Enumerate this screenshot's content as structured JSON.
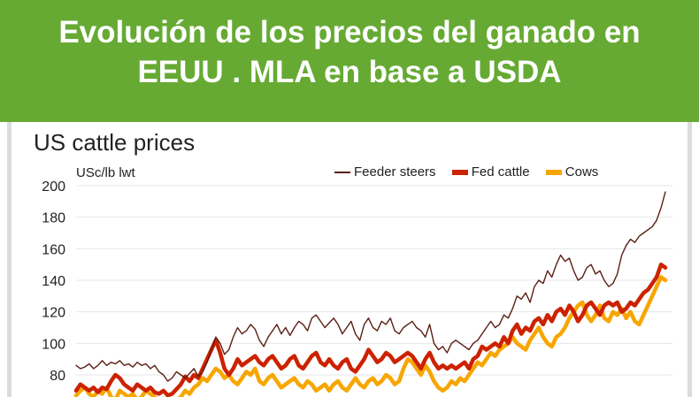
{
  "banner": {
    "title_line1": "Evolución de los precios del ganado en",
    "title_line2": "EEUU . MLA en base a USDA"
  },
  "colors": {
    "banner": "#66aa33",
    "feeder_steers": "#5a1e14",
    "fed_cattle": "#cc2200",
    "cows": "#f7a600"
  },
  "chart_data": {
    "type": "line",
    "title": "US cattle prices",
    "ylabel": "USc/lb lwt",
    "ylim": [
      70,
      205
    ],
    "yticks": [
      80,
      100,
      120,
      140,
      160,
      180,
      200
    ],
    "x": [
      0,
      1,
      2,
      3,
      4,
      5,
      6,
      7,
      8,
      9,
      10,
      11,
      12,
      13,
      14,
      15,
      16,
      17,
      18,
      19,
      20,
      21,
      22,
      23,
      24,
      25,
      26,
      27,
      28,
      29,
      30,
      31,
      32,
      33,
      34,
      35,
      36,
      37,
      38,
      39,
      40,
      41,
      42,
      43,
      44,
      45,
      46,
      47,
      48,
      49,
      50,
      51,
      52,
      53,
      54,
      55,
      56,
      57,
      58,
      59,
      60,
      61,
      62,
      63,
      64,
      65,
      66,
      67,
      68,
      69,
      70,
      71,
      72,
      73,
      74,
      75,
      76,
      77,
      78,
      79,
      80,
      81,
      82,
      83,
      84,
      85,
      86,
      87,
      88,
      89,
      90,
      91,
      92,
      93,
      94,
      95,
      96,
      97,
      98,
      99,
      100,
      101,
      102,
      103,
      104,
      105,
      106,
      107,
      108,
      109,
      110,
      111,
      112,
      113,
      114,
      115,
      116,
      117,
      118,
      119,
      120,
      121,
      122,
      123,
      124,
      125,
      126,
      127,
      128,
      129,
      130,
      131,
      132,
      133,
      134,
      135
    ],
    "xlim": [
      0,
      135
    ],
    "legend_position": "top-right",
    "series": [
      {
        "name": "Feeder steers",
        "values": [
          86,
          84,
          85,
          87,
          84,
          86,
          89,
          86,
          88,
          87,
          89,
          86,
          87,
          85,
          88,
          86,
          87,
          84,
          86,
          82,
          80,
          76,
          78,
          82,
          80,
          78,
          81,
          84,
          79,
          82,
          88,
          96,
          104,
          100,
          93,
          96,
          104,
          110,
          106,
          108,
          112,
          109,
          102,
          98,
          104,
          108,
          112,
          106,
          110,
          105,
          110,
          114,
          112,
          108,
          116,
          118,
          114,
          110,
          113,
          116,
          112,
          106,
          110,
          114,
          106,
          102,
          112,
          116,
          110,
          108,
          114,
          112,
          116,
          108,
          106,
          110,
          112,
          114,
          110,
          108,
          104,
          112,
          100,
          96,
          98,
          94,
          100,
          102,
          100,
          98,
          96,
          100,
          102,
          106,
          110,
          114,
          110,
          112,
          118,
          116,
          122,
          130,
          128,
          132,
          126,
          136,
          140,
          138,
          146,
          142,
          150,
          156,
          152,
          154,
          146,
          140,
          142,
          148,
          150,
          144,
          146,
          140,
          136,
          138,
          144,
          156,
          162,
          166,
          164,
          168,
          170,
          172,
          174,
          178,
          186,
          196
        ]
      },
      {
        "name": "Fed cattle",
        "values": [
          70,
          74,
          72,
          70,
          72,
          69,
          72,
          71,
          76,
          80,
          78,
          74,
          72,
          70,
          74,
          72,
          70,
          72,
          69,
          68,
          70,
          67,
          68,
          71,
          74,
          79,
          76,
          80,
          78,
          84,
          90,
          96,
          102,
          94,
          84,
          80,
          84,
          90,
          86,
          88,
          90,
          92,
          88,
          86,
          90,
          92,
          88,
          84,
          86,
          90,
          92,
          86,
          84,
          88,
          92,
          94,
          88,
          86,
          90,
          86,
          84,
          88,
          90,
          84,
          82,
          86,
          90,
          96,
          92,
          88,
          90,
          94,
          92,
          88,
          90,
          92,
          94,
          92,
          88,
          84,
          90,
          94,
          88,
          84,
          86,
          84,
          86,
          84,
          86,
          88,
          84,
          90,
          92,
          98,
          96,
          98,
          100,
          98,
          104,
          100,
          108,
          112,
          106,
          110,
          108,
          114,
          116,
          112,
          118,
          114,
          120,
          122,
          118,
          124,
          120,
          114,
          118,
          124,
          126,
          122,
          118,
          124,
          126,
          124,
          126,
          120,
          122,
          126,
          124,
          128,
          132,
          134,
          138,
          142,
          150,
          148
        ]
      },
      {
        "name": "Cows",
        "values": [
          67,
          70,
          72,
          68,
          66,
          70,
          68,
          72,
          66,
          64,
          70,
          68,
          66,
          68,
          64,
          66,
          70,
          68,
          66,
          63,
          65,
          61,
          62,
          64,
          66,
          70,
          68,
          72,
          74,
          78,
          76,
          80,
          84,
          82,
          78,
          80,
          76,
          74,
          78,
          82,
          80,
          84,
          76,
          74,
          78,
          80,
          76,
          72,
          74,
          76,
          78,
          74,
          72,
          76,
          74,
          70,
          72,
          74,
          70,
          74,
          76,
          72,
          70,
          74,
          78,
          74,
          72,
          76,
          78,
          74,
          76,
          80,
          78,
          74,
          76,
          84,
          90,
          88,
          84,
          80,
          86,
          82,
          76,
          72,
          70,
          72,
          76,
          74,
          78,
          76,
          80,
          84,
          88,
          86,
          90,
          94,
          92,
          96,
          98,
          100,
          104,
          100,
          98,
          96,
          102,
          106,
          110,
          104,
          100,
          98,
          104,
          106,
          110,
          116,
          120,
          124,
          126,
          118,
          114,
          118,
          124,
          116,
          114,
          120,
          118,
          122,
          116,
          120,
          114,
          112,
          118,
          124,
          130,
          136,
          142,
          140
        ]
      }
    ]
  }
}
